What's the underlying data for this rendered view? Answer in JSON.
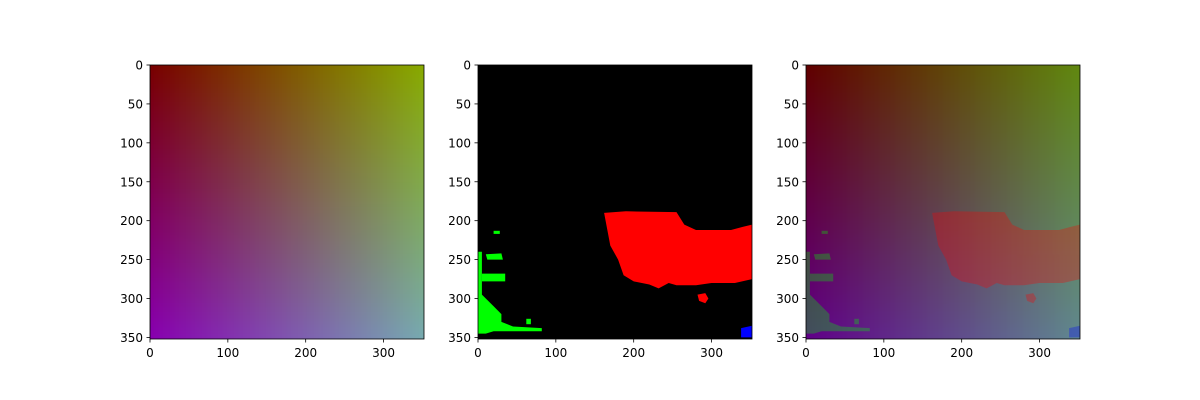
{
  "chart_data": [
    {
      "type": "heatmap",
      "image": "rgb-gradient",
      "xlim": [
        0,
        352
      ],
      "ylim": [
        352,
        0
      ],
      "xticks": [
        "0",
        "100",
        "200",
        "300"
      ],
      "yticks": [
        "0",
        "50",
        "100",
        "150",
        "200",
        "250",
        "300",
        "350"
      ],
      "corner_colors": {
        "top_left": "#780000",
        "top_right": "#88aa00",
        "bottom_left": "#8800b0",
        "bottom_right": "#77aab0"
      }
    },
    {
      "type": "heatmap",
      "image": "segmentation-mask",
      "xlim": [
        0,
        352
      ],
      "ylim": [
        352,
        0
      ],
      "xticks": [
        "0",
        "100",
        "200",
        "300"
      ],
      "yticks": [
        "0",
        "50",
        "100",
        "150",
        "200",
        "250",
        "300",
        "350"
      ],
      "background": "#000000",
      "regions": [
        {
          "label": "red",
          "color": "#ff0000",
          "outline": [
            [
              162,
              190
            ],
            [
              175,
              189
            ],
            [
              190,
              188
            ],
            [
              255,
              189
            ],
            [
              265,
              205
            ],
            [
              280,
              212
            ],
            [
              300,
              212
            ],
            [
              325,
              212
            ],
            [
              340,
              208
            ],
            [
              352,
              205
            ],
            [
              352,
              275
            ],
            [
              330,
              280
            ],
            [
              300,
              280
            ],
            [
              280,
              283
            ],
            [
              255,
              283
            ],
            [
              245,
              280
            ],
            [
              232,
              287
            ],
            [
              220,
              282
            ],
            [
              200,
              278
            ],
            [
              187,
              270
            ],
            [
              180,
              250
            ],
            [
              170,
              232
            ]
          ]
        },
        {
          "label": "red",
          "color": "#ff0000",
          "outline": [
            [
              282,
              295
            ],
            [
              292,
              293
            ],
            [
              296,
              300
            ],
            [
              292,
              306
            ],
            [
              284,
              303
            ]
          ]
        },
        {
          "label": "green",
          "color": "#00ff00",
          "outline": [
            [
              0,
              240
            ],
            [
              5,
              240
            ],
            [
              5,
              295
            ],
            [
              10,
              300
            ],
            [
              20,
              310
            ],
            [
              30,
              320
            ],
            [
              30,
              330
            ],
            [
              45,
              336
            ],
            [
              45,
              342
            ],
            [
              20,
              342
            ],
            [
              10,
              345
            ],
            [
              0,
              345
            ]
          ]
        },
        {
          "label": "green",
          "color": "#00ff00",
          "outline": [
            [
              10,
              243
            ],
            [
              30,
              242
            ],
            [
              32,
              250
            ],
            [
              12,
              250
            ]
          ]
        },
        {
          "label": "green",
          "color": "#00ff00",
          "outline": [
            [
              5,
              268
            ],
            [
              35,
              268
            ],
            [
              35,
              278
            ],
            [
              5,
              278
            ]
          ]
        },
        {
          "label": "green",
          "color": "#00ff00",
          "outline": [
            [
              45,
              336
            ],
            [
              82,
              338
            ],
            [
              82,
              342
            ],
            [
              45,
              342
            ]
          ]
        },
        {
          "label": "green",
          "color": "#00ff00",
          "outline": [
            [
              20,
              213
            ],
            [
              28,
              213
            ],
            [
              28,
              217
            ],
            [
              20,
              217
            ]
          ]
        },
        {
          "label": "green",
          "color": "#00ff00",
          "outline": [
            [
              62,
              326
            ],
            [
              68,
              326
            ],
            [
              68,
              333
            ],
            [
              62,
              333
            ]
          ]
        },
        {
          "label": "blue",
          "color": "#0000ff",
          "outline": [
            [
              338,
              338
            ],
            [
              352,
              335
            ],
            [
              352,
              350
            ],
            [
              338,
              350
            ]
          ]
        }
      ]
    },
    {
      "type": "heatmap",
      "image": "blended-overlay",
      "xlim": [
        0,
        352
      ],
      "ylim": [
        352,
        0
      ],
      "xticks": [
        "0",
        "100",
        "200",
        "300"
      ],
      "yticks": [
        "0",
        "50",
        "100",
        "150",
        "200",
        "250",
        "300",
        "350"
      ],
      "corner_colors": {
        "top_left": "#600000",
        "top_right": "#608810",
        "bottom_left": "#600088",
        "bottom_right": "#608890"
      },
      "overlay_opacity": 0.3
    }
  ]
}
